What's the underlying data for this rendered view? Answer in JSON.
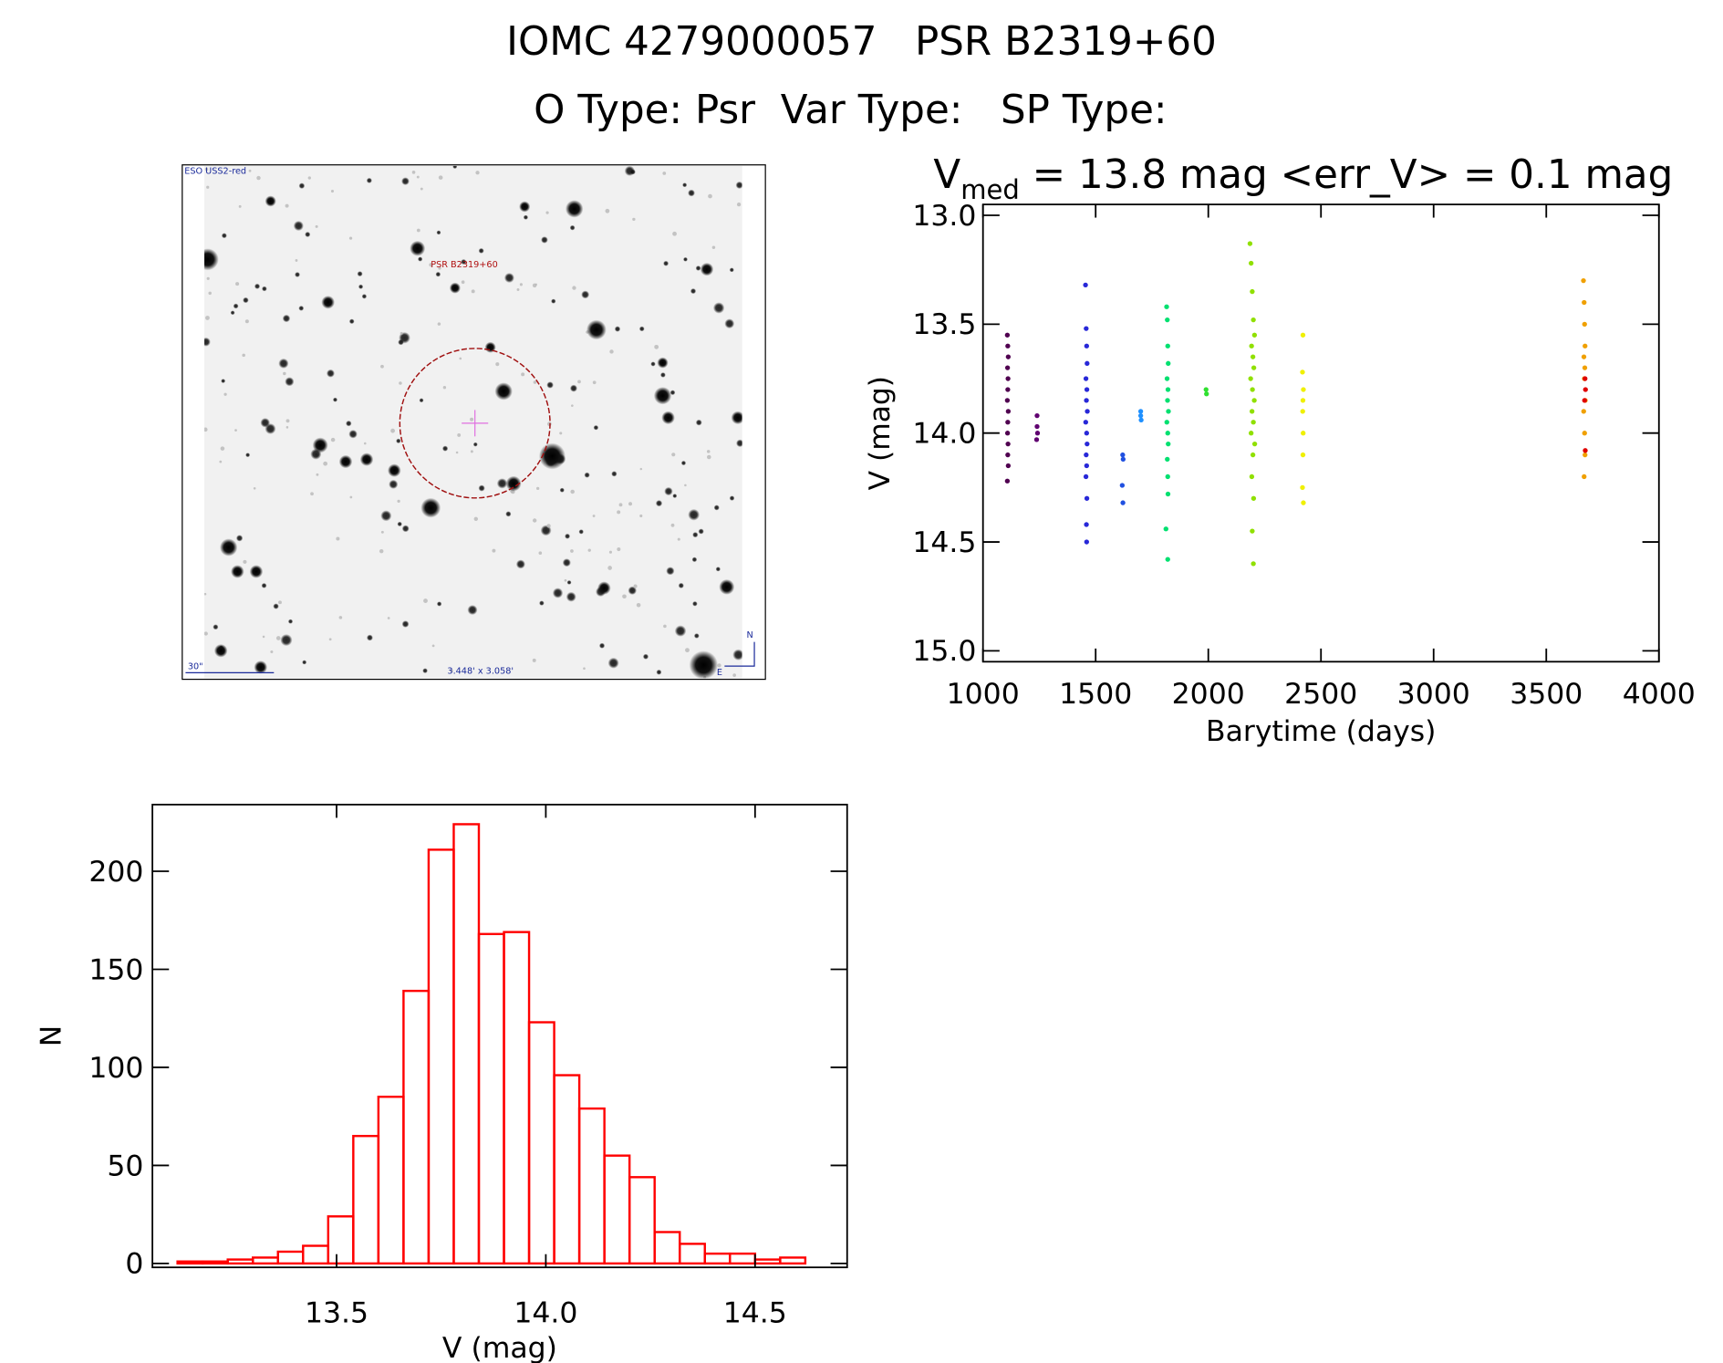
{
  "header": {
    "title": "IOMC 4279000057   PSR B2319+60",
    "subtitle": "O Type: Psr  Var Type:   SP Type:"
  },
  "image": {
    "survey": "ESO USS2-red",
    "target": "PSR B2319+60",
    "scale": "30\"",
    "size": "3.448' x 3.058'",
    "north": "N",
    "east": "E"
  },
  "chart_data": [
    {
      "type": "scatter",
      "title": {
        "main": "V",
        "sub": "med",
        "rest": " = 13.8 mag <err_V> = 0.1 mag"
      },
      "x_label": "Barytime (days)",
      "y_label": "V (mag)",
      "xlim": [
        1000,
        4000
      ],
      "ylim": [
        12.95,
        15.05
      ],
      "y_inverted": true,
      "xticks": [
        1000,
        1500,
        2000,
        2500,
        3000,
        3500,
        4000
      ],
      "yticks": [
        {
          "value": 13,
          "label": "13.0"
        },
        13.5,
        {
          "value": 14,
          "label": "14.0"
        },
        14.5,
        {
          "value": 15,
          "label": "15.0"
        }
      ],
      "series": [
        {
          "color": "#500050",
          "x": [
            1108,
            1110,
            1112,
            1109,
            1111,
            1110,
            1108,
            1112,
            1110,
            1109,
            1111,
            1110,
            1112,
            1108
          ],
          "values": [
            13.55,
            13.6,
            13.65,
            13.7,
            13.75,
            13.8,
            13.85,
            13.9,
            13.95,
            14.0,
            14.05,
            14.1,
            14.15,
            14.22
          ]
        },
        {
          "color": "#600070",
          "x": [
            1240,
            1240,
            1242,
            1238
          ],
          "values": [
            13.92,
            13.97,
            14.0,
            14.03
          ]
        },
        {
          "color": "#2828d8",
          "x": [
            1455,
            1458,
            1460,
            1462,
            1457,
            1461,
            1459,
            1463,
            1456,
            1460,
            1462,
            1458,
            1460,
            1457,
            1461,
            1459,
            1460
          ],
          "values": [
            13.32,
            13.52,
            13.6,
            13.68,
            13.75,
            13.8,
            13.85,
            13.9,
            13.95,
            14.0,
            14.05,
            14.1,
            14.15,
            14.2,
            14.3,
            14.42,
            14.5
          ]
        },
        {
          "color": "#2050e0",
          "x": [
            1620,
            1622,
            1618,
            1621
          ],
          "values": [
            14.1,
            14.12,
            14.24,
            14.32
          ]
        },
        {
          "color": "#1e90ff",
          "x": [
            1700,
            1700,
            1702
          ],
          "values": [
            13.9,
            13.92,
            13.94
          ]
        },
        {
          "color": "#00e070",
          "x": [
            1815,
            1818,
            1820,
            1822,
            1817,
            1821,
            1819,
            1823,
            1816,
            1820,
            1822,
            1818,
            1820,
            1821,
            1812,
            1820
          ],
          "values": [
            13.42,
            13.48,
            13.6,
            13.68,
            13.75,
            13.8,
            13.85,
            13.9,
            13.95,
            14.0,
            14.05,
            14.12,
            14.2,
            14.28,
            14.44,
            14.58
          ]
        },
        {
          "color": "#30e030",
          "x": [
            1990,
            1992
          ],
          "values": [
            13.8,
            13.82
          ]
        },
        {
          "color": "#90e000",
          "x": [
            2185,
            2190,
            2195,
            2200,
            2205,
            2192,
            2198,
            2202,
            2188,
            2196,
            2204,
            2194,
            2200,
            2190,
            2206,
            2198,
            2193,
            2201,
            2195,
            2200
          ],
          "values": [
            13.13,
            13.22,
            13.35,
            13.48,
            13.55,
            13.6,
            13.65,
            13.7,
            13.75,
            13.8,
            13.85,
            13.9,
            13.95,
            14.0,
            14.05,
            14.1,
            14.2,
            14.3,
            14.45,
            14.6
          ]
        },
        {
          "color": "#f0f000",
          "x": [
            2420,
            2418,
            2422,
            2420,
            2419,
            2421,
            2420,
            2418,
            2422
          ],
          "values": [
            13.55,
            13.72,
            13.8,
            13.85,
            13.9,
            14.0,
            14.1,
            14.25,
            14.32
          ]
        },
        {
          "color": "#f0a000",
          "x": [
            3665,
            3668,
            3670,
            3672,
            3667,
            3671,
            3669,
            3673,
            3666,
            3670,
            3672,
            3668
          ],
          "values": [
            13.3,
            13.4,
            13.5,
            13.6,
            13.65,
            13.7,
            13.75,
            13.85,
            13.9,
            14.0,
            14.1,
            14.2
          ]
        },
        {
          "color": "#e00000",
          "x": [
            3672,
            3674,
            3670,
            3673
          ],
          "values": [
            13.75,
            13.8,
            13.85,
            14.08
          ]
        }
      ]
    },
    {
      "type": "histogram",
      "x_label": "V (mag)",
      "y_label": "N",
      "color": "#ff0000",
      "bins": [
        13.12,
        13.18,
        13.24,
        13.3,
        13.36,
        13.42,
        13.48,
        13.54,
        13.6,
        13.66,
        13.72,
        13.78,
        13.84,
        13.9,
        13.96,
        14.02,
        14.08,
        14.14,
        14.2,
        14.26,
        14.32,
        14.38,
        14.44,
        14.5,
        14.56,
        14.62
      ],
      "values": [
        1,
        1,
        2,
        3,
        6,
        9,
        24,
        65,
        85,
        139,
        211,
        224,
        168,
        169,
        123,
        96,
        79,
        55,
        44,
        16,
        10,
        5,
        5,
        2,
        3
      ],
      "xlim": [
        13.06,
        14.72
      ],
      "ylim": [
        -2,
        234
      ],
      "xticks": [
        13.5,
        {
          "value": 14,
          "label": "14.0"
        },
        14.5
      ],
      "yticks": [
        0,
        50,
        100,
        150,
        200
      ]
    }
  ]
}
